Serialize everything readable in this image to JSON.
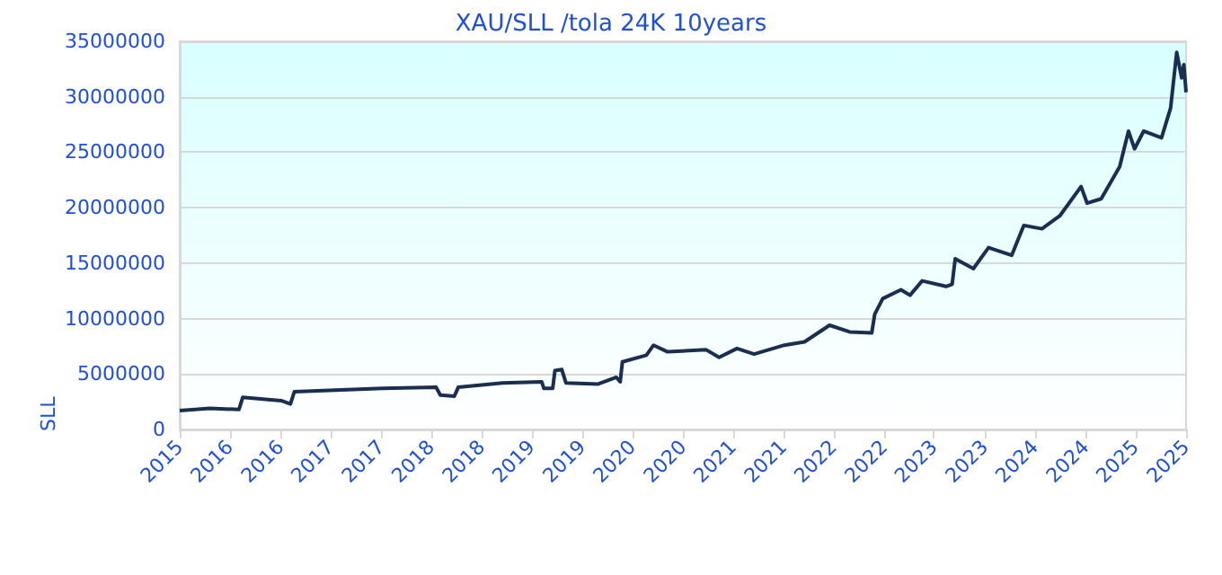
{
  "chart_data": {
    "type": "line",
    "title": "XAU/SLL /tola 24K 10years",
    "ylabel": "SLL",
    "x": [
      "2015-09-01",
      "2015-12-20",
      "2016-04-03",
      "2016-04-17",
      "2016-09-03",
      "2016-10-07",
      "2016-10-21",
      "2017-02-04",
      "2017-09-07",
      "2018-03-20",
      "2018-04-04",
      "2018-05-25",
      "2018-06-08",
      "2018-11-16",
      "2019-04-07",
      "2019-04-15",
      "2019-05-17",
      "2019-05-25",
      "2019-06-19",
      "2019-07-04",
      "2019-10-29",
      "2020-01-03",
      "2020-01-17",
      "2020-01-25",
      "2020-04-21",
      "2020-05-17",
      "2020-07-07",
      "2020-11-23",
      "2021-01-10",
      "2021-03-16",
      "2021-05-17",
      "2021-09-04",
      "2021-11-16",
      "2022-02-15",
      "2022-04-29",
      "2022-07-18",
      "2022-07-29",
      "2022-08-27",
      "2022-11-01",
      "2022-12-04",
      "2023-01-17",
      "2023-04-14",
      "2023-05-06",
      "2023-05-17",
      "2023-07-22",
      "2023-09-15",
      "2023-12-08",
      "2024-01-21",
      "2024-03-27",
      "2024-06-01",
      "2024-08-16",
      "2024-09-07",
      "2024-10-28",
      "2025-01-03",
      "2025-02-04",
      "2025-02-26",
      "2025-03-31",
      "2025-06-04",
      "2025-07-07",
      "2025-07-29",
      "2025-08-16",
      "2025-08-24",
      "2025-09-01"
    ],
    "series": [
      {
        "color": "#1a2e50",
        "values": [
          1700000,
          1900000,
          1800000,
          2900000,
          2600000,
          2300000,
          3400000,
          3500000,
          3700000,
          3800000,
          3100000,
          3000000,
          3800000,
          4200000,
          4300000,
          3700000,
          3700000,
          5300000,
          5400000,
          4200000,
          4100000,
          4700000,
          4300000,
          6100000,
          6700000,
          7600000,
          7000000,
          7200000,
          6500000,
          7300000,
          6800000,
          7600000,
          7900000,
          9400000,
          8800000,
          8700000,
          10400000,
          11800000,
          12600000,
          12100000,
          13400000,
          12900000,
          13100000,
          15400000,
          14500000,
          16400000,
          15700000,
          18400000,
          18100000,
          19300000,
          21900000,
          20400000,
          20800000,
          23700000,
          26900000,
          25300000,
          26900000,
          26300000,
          29000000,
          34000000,
          31700000,
          32900000,
          30400000
        ]
      }
    ],
    "xlim": [
      "2015-09-01",
      "2025-09-01"
    ],
    "xticks": [
      {
        "value": "2015-09-01",
        "label": "2015"
      },
      {
        "value": "2016-03-01",
        "label": "2016"
      },
      {
        "value": "2016-09-01",
        "label": "2016"
      },
      {
        "value": "2017-03-01",
        "label": "2017"
      },
      {
        "value": "2017-09-01",
        "label": "2017"
      },
      {
        "value": "2018-03-01",
        "label": "2018"
      },
      {
        "value": "2018-09-01",
        "label": "2018"
      },
      {
        "value": "2019-03-01",
        "label": "2019"
      },
      {
        "value": "2019-09-01",
        "label": "2019"
      },
      {
        "value": "2020-03-01",
        "label": "2020"
      },
      {
        "value": "2020-09-01",
        "label": "2020"
      },
      {
        "value": "2021-03-01",
        "label": "2021"
      },
      {
        "value": "2021-09-01",
        "label": "2021"
      },
      {
        "value": "2022-03-01",
        "label": "2022"
      },
      {
        "value": "2022-09-01",
        "label": "2022"
      },
      {
        "value": "2023-03-01",
        "label": "2023"
      },
      {
        "value": "2023-09-01",
        "label": "2023"
      },
      {
        "value": "2024-03-01",
        "label": "2024"
      },
      {
        "value": "2024-09-01",
        "label": "2024"
      },
      {
        "value": "2025-03-01",
        "label": "2025"
      },
      {
        "value": "2025-09-01",
        "label": "2025"
      }
    ],
    "ylim": [
      0,
      35000000
    ],
    "yticks": [
      0,
      5000000,
      10000000,
      15000000,
      20000000,
      25000000,
      30000000,
      35000000
    ],
    "grid": "y",
    "marker": "none",
    "line_style": "solid"
  }
}
